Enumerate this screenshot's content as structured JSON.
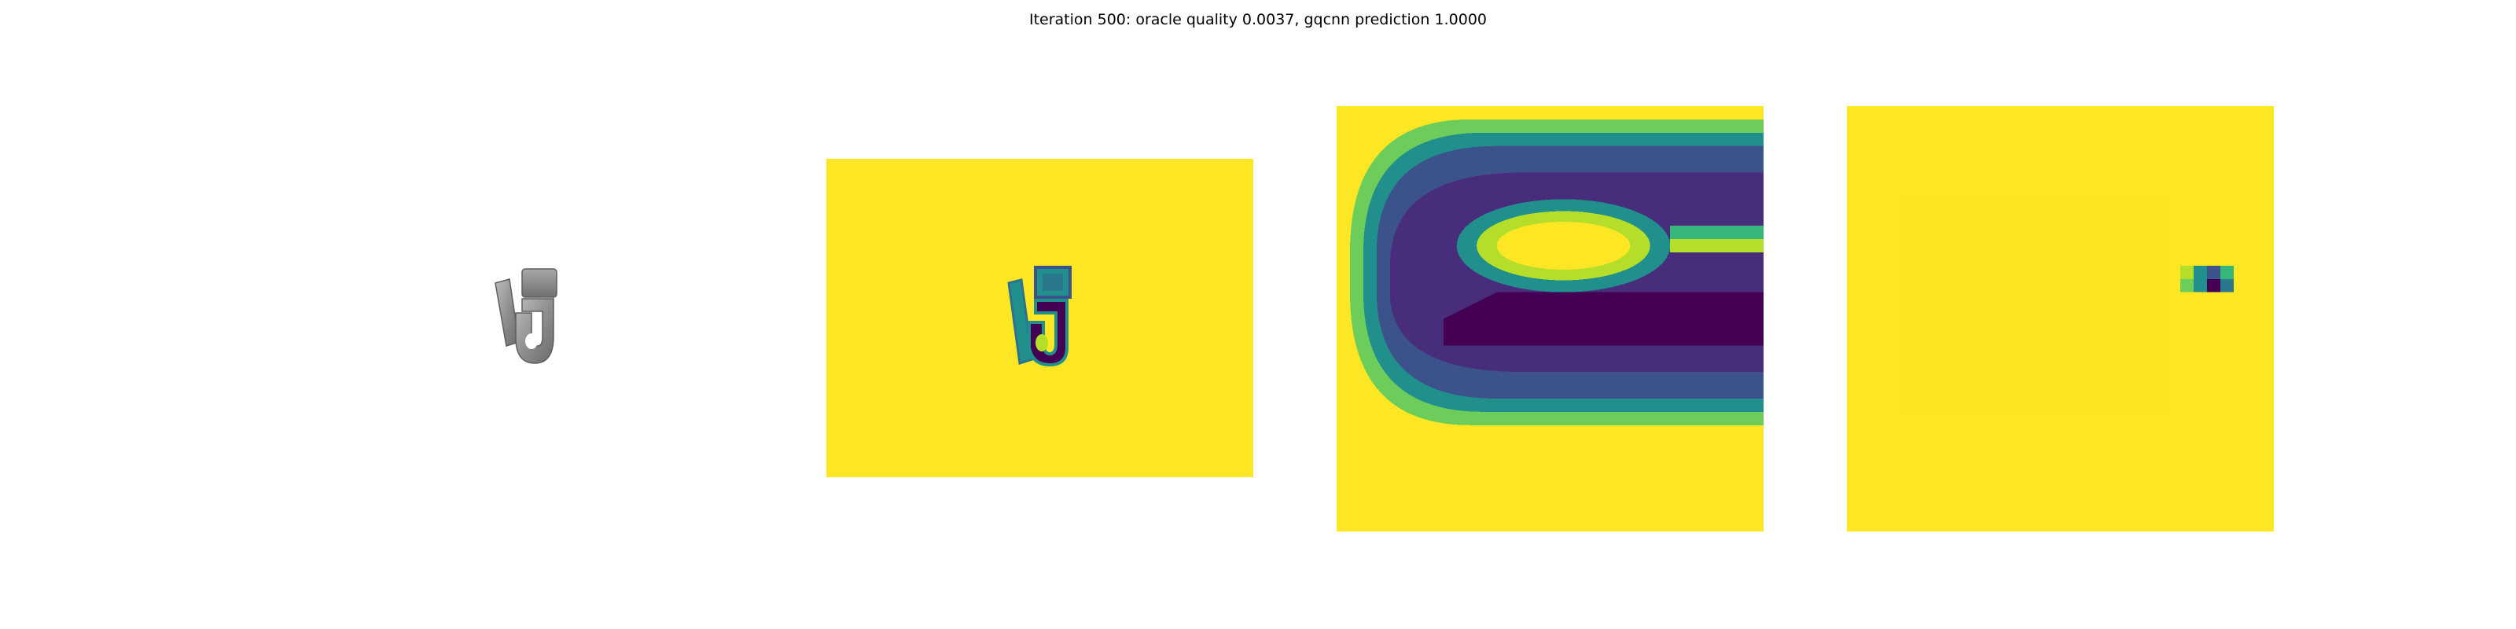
{
  "figure": {
    "title": "Iteration 500: oracle quality 0.0037, gqcnn prediction 1.0000"
  },
  "colors": {
    "background": "#ffffff",
    "viridis_yellow": "#fde725",
    "viridis_teal": "#21908d",
    "viridis_blue": "#3b528b",
    "viridis_indigo": "#443983",
    "viridis_purple": "#440154",
    "render_gray": "#8a8a8a"
  },
  "panels": [
    {
      "name": "rendered-object",
      "kind": "grayscale render"
    },
    {
      "name": "depth-image",
      "kind": "viridis depth map"
    },
    {
      "name": "depth-crop",
      "kind": "zoomed viridis crop"
    },
    {
      "name": "gradient-map",
      "kind": "viridis saliency map"
    }
  ]
}
